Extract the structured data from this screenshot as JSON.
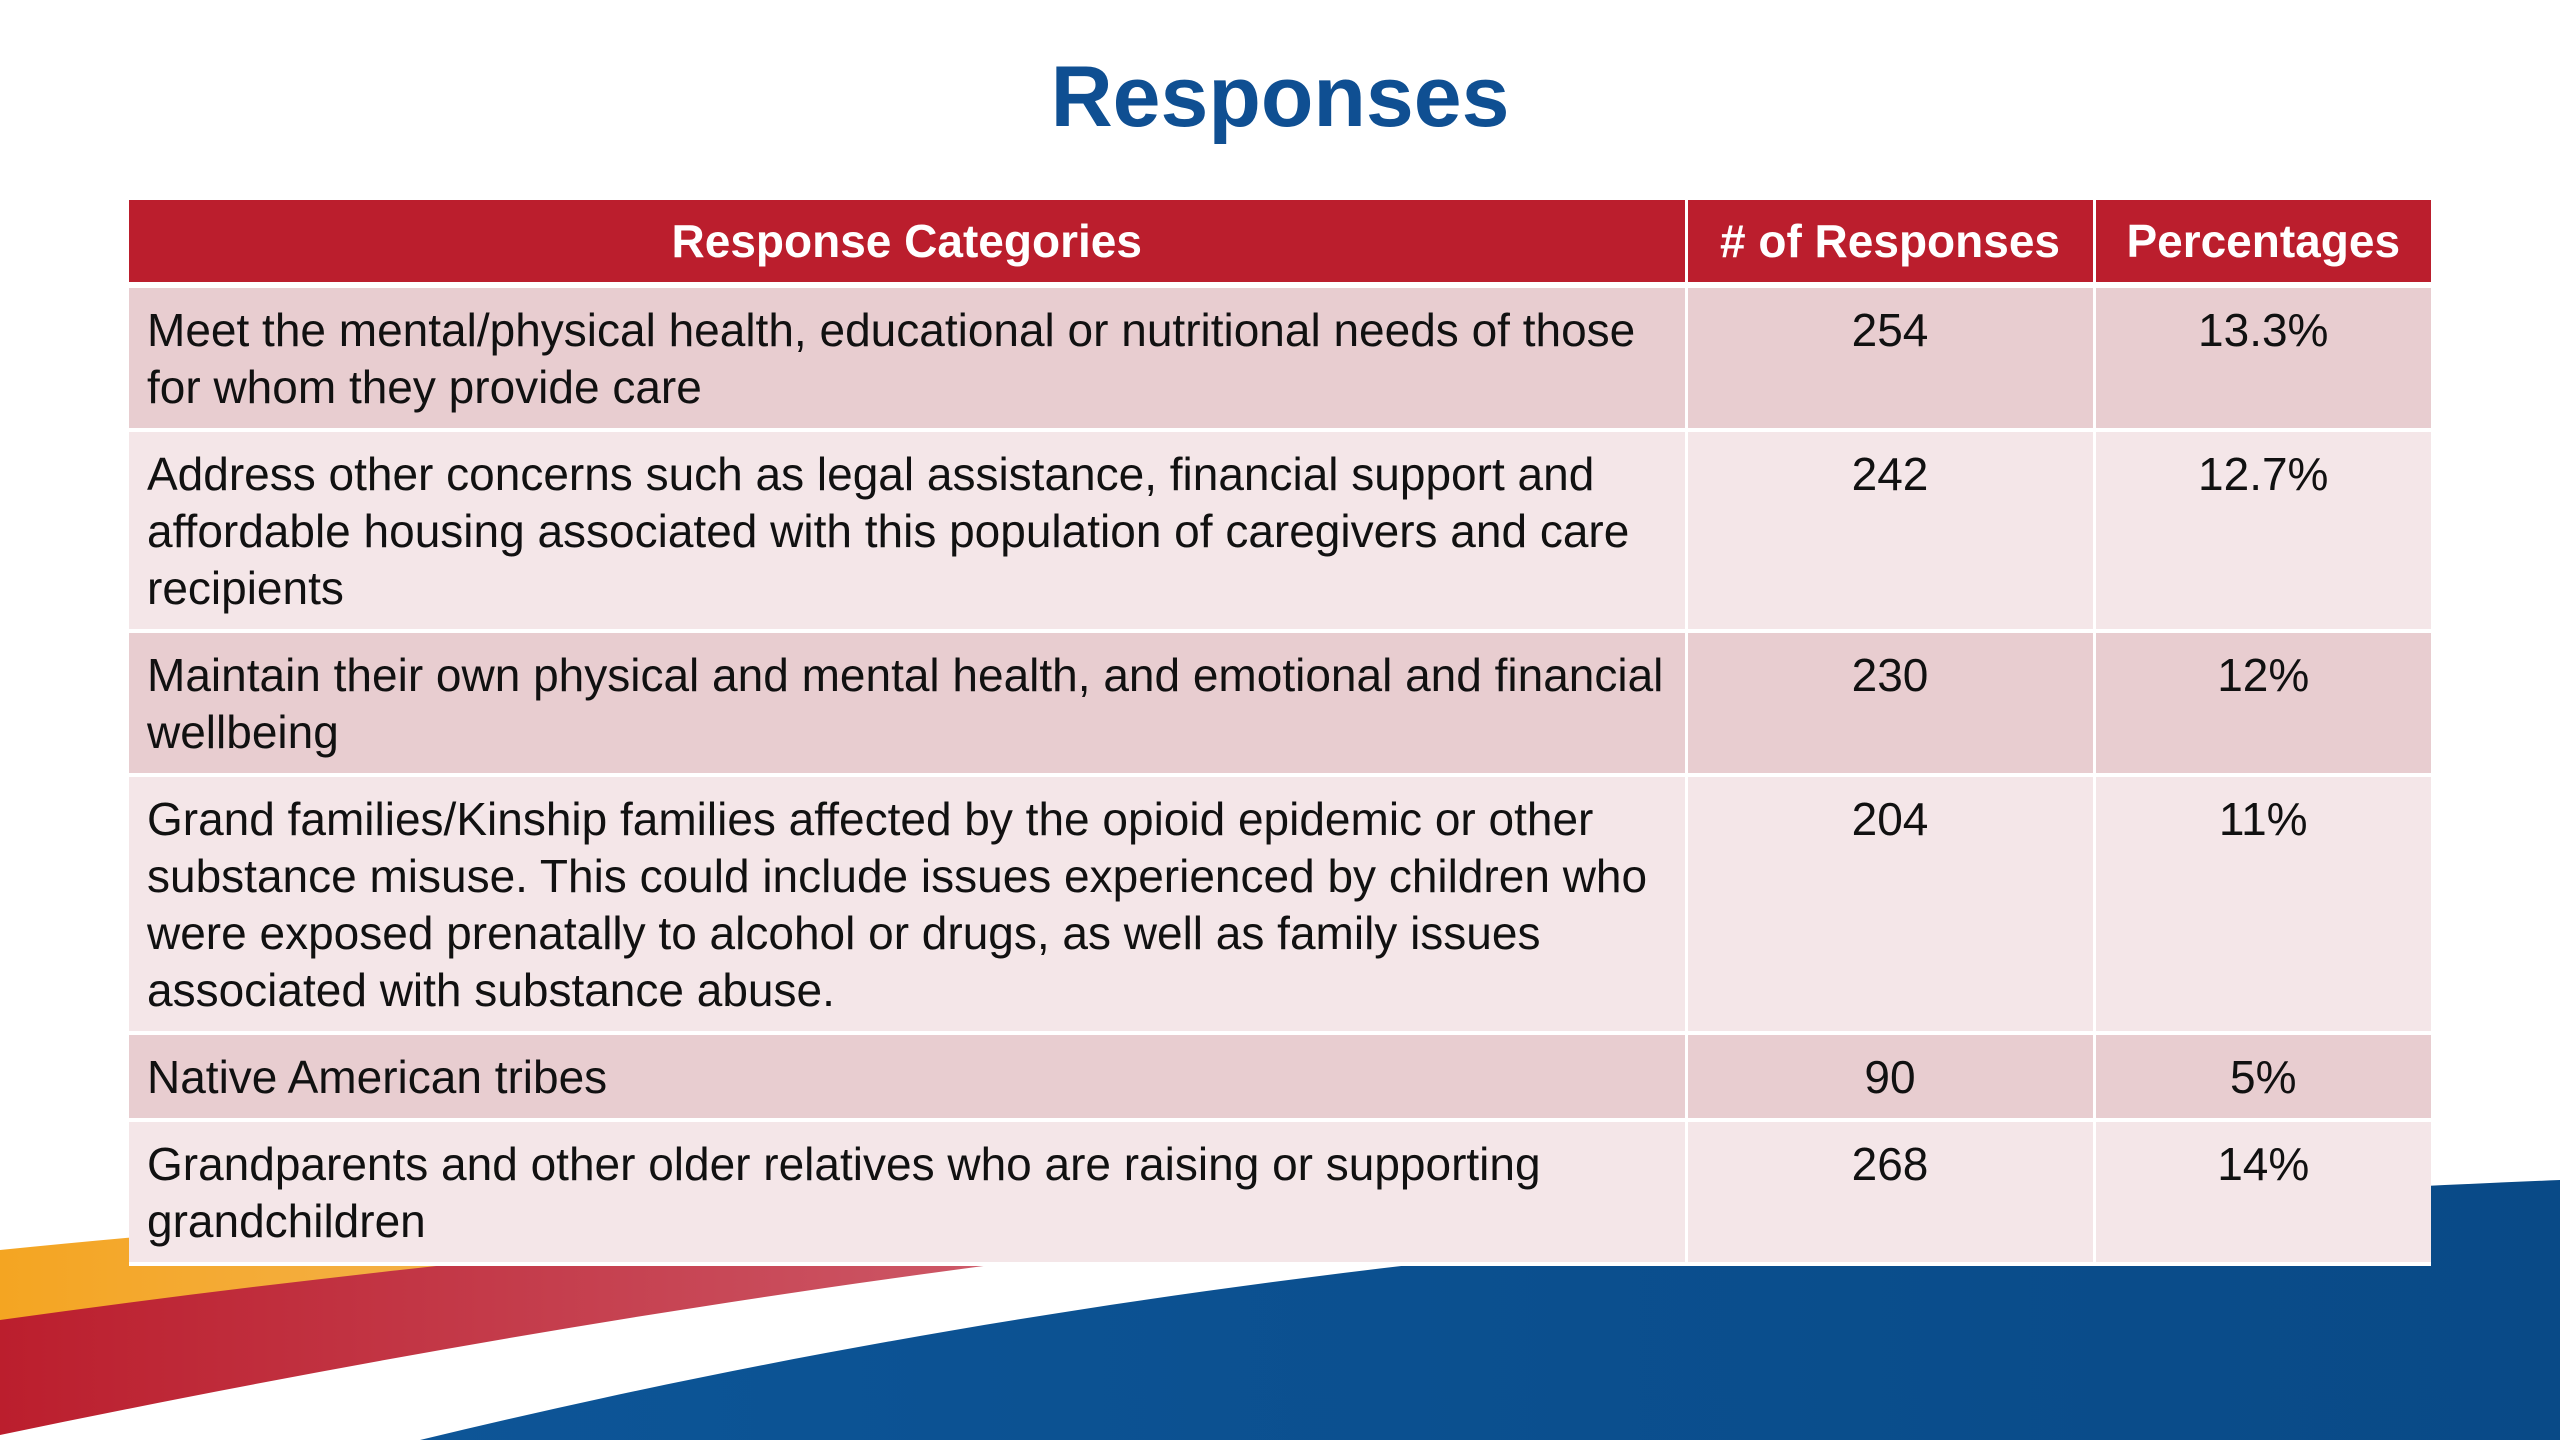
{
  "title": "Responses",
  "table": {
    "headers": [
      "Response Categories",
      "# of Responses",
      "Percentages"
    ],
    "rows": [
      {
        "category": "Meet the mental/physical health, educational or nutritional needs of those for whom they provide care",
        "responses": "254",
        "percentage": "13.3%"
      },
      {
        "category": "Address other concerns such as legal assistance, financial support and affordable housing associated with this population of caregivers and care recipients",
        "responses": "242",
        "percentage": "12.7%"
      },
      {
        "category": "Maintain their own physical and mental health, and emotional and financial wellbeing",
        "responses": "230",
        "percentage": "12%"
      },
      {
        "category": "Grand families/Kinship families affected by the opioid epidemic or other substance misuse. This could include issues experienced by children who were exposed prenatally to alcohol or drugs, as well as family issues associated with substance abuse.",
        "responses": "204",
        "percentage": "11%"
      },
      {
        "category": "Native American tribes",
        "responses": "90",
        "percentage": "5%"
      },
      {
        "category": "Grandparents and other older relatives who are raising or supporting grandchildren",
        "responses": "268",
        "percentage": "14%"
      }
    ]
  },
  "colors": {
    "title": "#0f4f92",
    "header_bg": "#bb1e2d",
    "row_odd": "#e8cdd0",
    "row_even": "#f4e6e8",
    "wave_blue": "#0b4d8c",
    "wave_red": "#bb1e2d",
    "wave_orange": "#f4a522"
  }
}
